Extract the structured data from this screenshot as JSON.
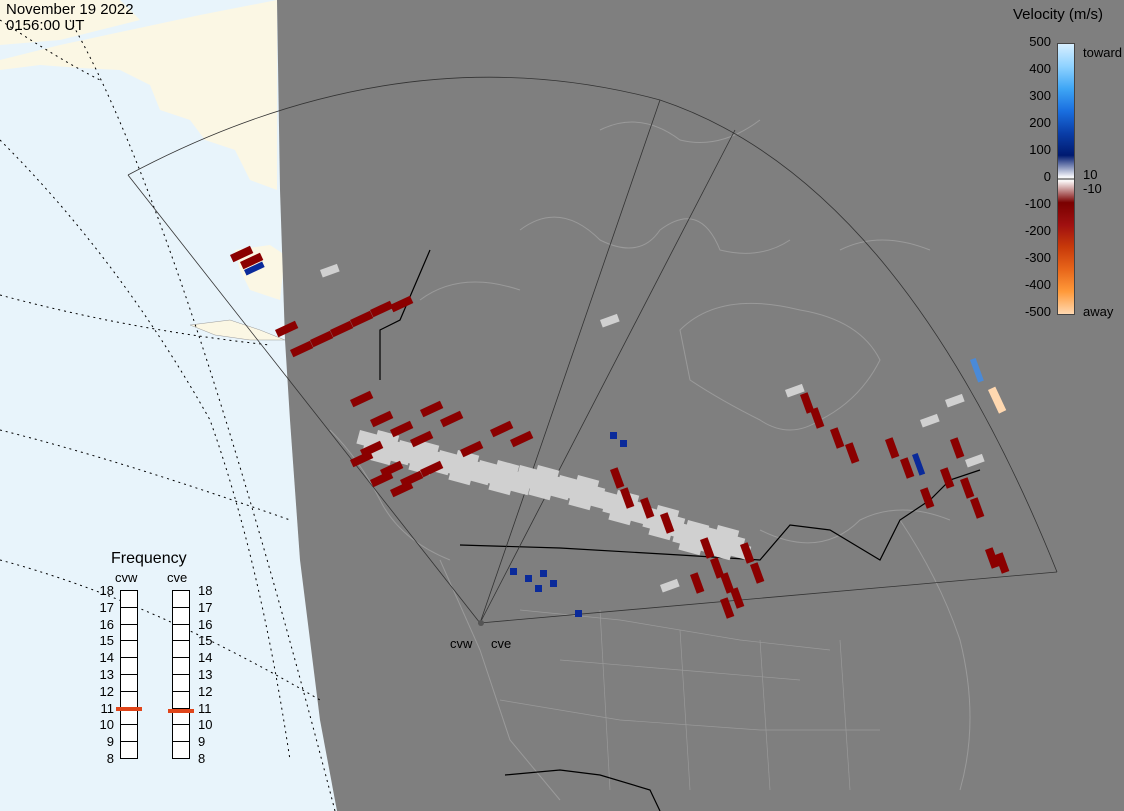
{
  "header": {
    "date": "November 19 2022",
    "time": "0156:00 UT"
  },
  "colorbar": {
    "title": "Velocity (m/s)",
    "ticks": [
      "500",
      "400",
      "300",
      "200",
      "100",
      "0",
      "-100",
      "-200",
      "-300",
      "-400",
      "-500"
    ],
    "inner_ticks": [
      "10",
      "-10"
    ],
    "toward_label": "toward",
    "away_label": "away",
    "colors_toward": [
      "#d7efff",
      "#8fd2ff",
      "#3fa6f5",
      "#1a6fe0",
      "#0a3ea8",
      "#001a70"
    ],
    "colors_away": [
      "#7a0000",
      "#a01010",
      "#c83a0a",
      "#e8661a",
      "#ff9a3a",
      "#ffd8b0"
    ],
    "ground_scatter_color": "#d0d0d0"
  },
  "frequency": {
    "title": "Frequency",
    "radars": [
      "cvw",
      "cve"
    ],
    "scale": [
      "18",
      "17",
      "16",
      "15",
      "14",
      "13",
      "12",
      "11",
      "10",
      "9",
      "8"
    ],
    "cvw_mhz": 10.9,
    "cve_mhz": 10.8,
    "marker_color": "#e0451a"
  },
  "radar_labels": {
    "west": "cvw",
    "east": "cve"
  },
  "map": {
    "land_color": "#7f7f7f",
    "ocean_color": "#e8f4fb",
    "unshaded_land_color": "#fbf7e4",
    "border_color": "#000000"
  }
}
